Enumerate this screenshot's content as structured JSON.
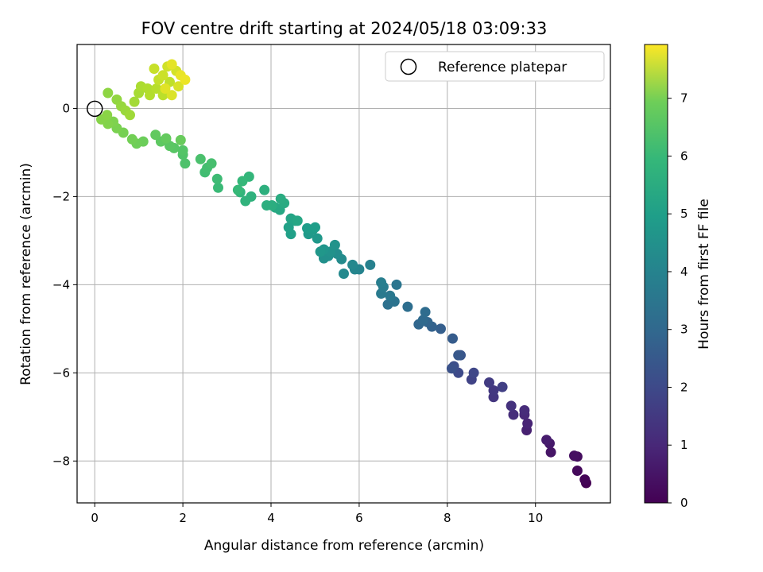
{
  "chart_data": {
    "type": "scatter",
    "title": "FOV centre drift starting at 2024/05/18 03:09:33",
    "xlabel": "Angular distance from reference (arcmin)",
    "ylabel": "Rotation from reference (arcmin)",
    "xlim": [
      -0.4,
      11.7
    ],
    "ylim": [
      -8.95,
      1.45
    ],
    "xticks": [
      "0",
      "2",
      "4",
      "6",
      "8",
      "10"
    ],
    "yticks": [
      "−8",
      "−6",
      "−4",
      "−2",
      "0"
    ],
    "grid": true,
    "legend": {
      "placement": "top-right",
      "entries": [
        "Reference platepar"
      ]
    },
    "reference_point": {
      "x": 0,
      "y": 0
    },
    "colorbar": {
      "label": "Hours from first FF file",
      "range": [
        0,
        7.93
      ],
      "ticks": [
        "0",
        "1",
        "2",
        "3",
        "4",
        "5",
        "6",
        "7"
      ],
      "colormap": "viridis"
    },
    "points": [
      [
        11.15,
        -8.5,
        0.0
      ],
      [
        11.12,
        -8.42,
        0.08
      ],
      [
        10.95,
        -8.22,
        0.18
      ],
      [
        10.95,
        -7.9,
        0.27
      ],
      [
        10.88,
        -7.88,
        0.35
      ],
      [
        10.35,
        -7.8,
        0.45
      ],
      [
        10.32,
        -7.6,
        0.55
      ],
      [
        10.25,
        -7.52,
        0.63
      ],
      [
        9.8,
        -7.3,
        0.72
      ],
      [
        9.82,
        -7.15,
        0.8
      ],
      [
        9.75,
        -6.95,
        0.9
      ],
      [
        9.75,
        -6.85,
        0.98
      ],
      [
        9.5,
        -6.95,
        1.05
      ],
      [
        9.45,
        -6.75,
        1.15
      ],
      [
        9.05,
        -6.55,
        1.25
      ],
      [
        9.05,
        -6.4,
        1.32
      ],
      [
        8.95,
        -6.22,
        1.4
      ],
      [
        9.25,
        -6.32,
        1.5
      ],
      [
        8.55,
        -6.15,
        1.6
      ],
      [
        8.6,
        -6.0,
        1.7
      ],
      [
        8.25,
        -6.0,
        1.8
      ],
      [
        8.15,
        -5.85,
        1.9
      ],
      [
        8.1,
        -5.9,
        2.0
      ],
      [
        8.3,
        -5.6,
        2.1
      ],
      [
        8.25,
        -5.6,
        2.2
      ],
      [
        8.12,
        -5.22,
        2.3
      ],
      [
        7.85,
        -5.0,
        2.4
      ],
      [
        7.65,
        -4.95,
        2.48
      ],
      [
        7.55,
        -4.85,
        2.55
      ],
      [
        7.35,
        -4.9,
        2.62
      ],
      [
        7.45,
        -4.8,
        2.7
      ],
      [
        7.5,
        -4.62,
        2.78
      ],
      [
        7.1,
        -4.5,
        2.85
      ],
      [
        6.65,
        -4.45,
        2.95
      ],
      [
        6.8,
        -4.38,
        3.02
      ],
      [
        6.85,
        -4.0,
        3.1
      ],
      [
        6.7,
        -4.25,
        3.18
      ],
      [
        6.5,
        -4.2,
        3.25
      ],
      [
        6.55,
        -4.05,
        3.32
      ],
      [
        6.5,
        -3.95,
        3.4
      ],
      [
        6.25,
        -3.55,
        3.48
      ],
      [
        6.0,
        -3.65,
        3.55
      ],
      [
        5.9,
        -3.65,
        3.62
      ],
      [
        5.85,
        -3.55,
        3.7
      ],
      [
        5.65,
        -3.75,
        3.75
      ],
      [
        5.6,
        -3.42,
        3.82
      ],
      [
        5.5,
        -3.3,
        3.88
      ],
      [
        5.3,
        -3.35,
        3.92
      ],
      [
        5.2,
        -3.4,
        3.97
      ],
      [
        5.35,
        -3.25,
        4.02
      ],
      [
        5.45,
        -3.1,
        4.07
      ],
      [
        5.2,
        -3.2,
        4.12
      ],
      [
        5.12,
        -3.25,
        4.17
      ],
      [
        5.05,
        -2.95,
        4.22
      ],
      [
        4.85,
        -2.85,
        4.27
      ],
      [
        4.95,
        -2.75,
        4.32
      ],
      [
        4.82,
        -2.72,
        4.37
      ],
      [
        5.0,
        -2.7,
        4.42
      ],
      [
        4.45,
        -2.85,
        4.47
      ],
      [
        4.4,
        -2.7,
        4.52
      ],
      [
        4.55,
        -2.55,
        4.57
      ],
      [
        4.45,
        -2.5,
        4.62
      ],
      [
        4.6,
        -2.55,
        4.67
      ],
      [
        4.2,
        -2.3,
        4.72
      ],
      [
        4.1,
        -2.25,
        4.77
      ],
      [
        4.3,
        -2.15,
        4.82
      ],
      [
        4.22,
        -2.05,
        4.87
      ],
      [
        4.02,
        -2.2,
        4.92
      ],
      [
        3.9,
        -2.2,
        4.97
      ],
      [
        3.85,
        -1.85,
        5.02
      ],
      [
        3.55,
        -2.0,
        5.07
      ],
      [
        3.42,
        -2.1,
        5.12
      ],
      [
        3.3,
        -1.9,
        5.17
      ],
      [
        3.5,
        -1.55,
        5.22
      ],
      [
        3.35,
        -1.65,
        5.27
      ],
      [
        3.25,
        -1.85,
        5.32
      ],
      [
        2.8,
        -1.8,
        5.37
      ],
      [
        2.78,
        -1.6,
        5.42
      ],
      [
        2.5,
        -1.45,
        5.47
      ],
      [
        2.55,
        -1.35,
        5.52
      ],
      [
        2.65,
        -1.25,
        5.57
      ],
      [
        2.4,
        -1.15,
        5.62
      ],
      [
        2.05,
        -1.25,
        5.67
      ],
      [
        2.0,
        -1.05,
        5.72
      ],
      [
        2.0,
        -0.95,
        5.77
      ],
      [
        1.8,
        -0.9,
        5.82
      ],
      [
        1.7,
        -0.85,
        5.87
      ],
      [
        1.5,
        -0.75,
        5.92
      ],
      [
        1.38,
        -0.6,
        5.97
      ],
      [
        1.62,
        -0.68,
        6.02
      ],
      [
        1.95,
        -0.72,
        6.07
      ],
      [
        1.1,
        -0.75,
        6.12
      ],
      [
        0.95,
        -0.8,
        6.17
      ],
      [
        0.85,
        -0.7,
        6.22
      ],
      [
        0.65,
        -0.55,
        6.27
      ],
      [
        0.5,
        -0.45,
        6.32
      ],
      [
        0.42,
        -0.3,
        6.37
      ],
      [
        0.3,
        -0.35,
        6.42
      ],
      [
        0.15,
        -0.25,
        6.47
      ],
      [
        0.28,
        -0.15,
        6.52
      ],
      [
        0.3,
        0.35,
        6.57
      ],
      [
        0.5,
        0.2,
        6.62
      ],
      [
        0.6,
        0.05,
        6.67
      ],
      [
        0.7,
        -0.05,
        6.72
      ],
      [
        0.8,
        -0.15,
        6.77
      ],
      [
        0.9,
        0.15,
        6.82
      ],
      [
        1.0,
        0.35,
        6.87
      ],
      [
        1.05,
        0.5,
        6.92
      ],
      [
        1.2,
        0.45,
        6.97
      ],
      [
        1.25,
        0.3,
        7.02
      ],
      [
        1.4,
        0.45,
        7.07
      ],
      [
        1.55,
        0.3,
        7.12
      ],
      [
        1.7,
        0.6,
        7.17
      ],
      [
        1.45,
        0.65,
        7.22
      ],
      [
        1.35,
        0.9,
        7.27
      ],
      [
        1.55,
        0.75,
        7.32
      ],
      [
        1.65,
        0.95,
        7.37
      ],
      [
        1.85,
        0.85,
        7.42
      ],
      [
        1.9,
        0.5,
        7.47
      ],
      [
        1.75,
        0.3,
        7.52
      ],
      [
        1.6,
        0.45,
        7.57
      ],
      [
        1.75,
        1.0,
        7.62
      ],
      [
        1.95,
        0.75,
        7.67
      ],
      [
        2.05,
        0.65,
        7.72
      ]
    ]
  }
}
